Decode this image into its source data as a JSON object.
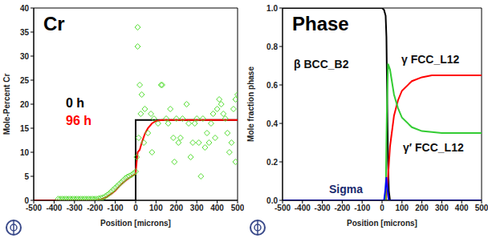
{
  "chart_data": [
    {
      "type": "line",
      "title": "Cr",
      "x_label": "Position [microns]",
      "y_label": "Mole-Percent Cr",
      "xlim": [
        -500,
        500
      ],
      "xticks": [
        -500,
        -400,
        -300,
        -200,
        -100,
        0,
        100,
        200,
        300,
        400,
        500
      ],
      "ylim": [
        0,
        40
      ],
      "yticks": [
        0,
        5,
        10,
        15,
        20,
        25,
        30,
        35,
        40
      ],
      "series": [
        {
          "name": "0 h",
          "color": "#000000",
          "type": "line",
          "x": [
            -500,
            0,
            0,
            500
          ],
          "values": [
            0,
            0,
            16.7,
            16.7
          ]
        },
        {
          "name": "96 h",
          "color": "#ff0000",
          "type": "line",
          "x": [
            -500,
            -200,
            -170,
            -150,
            -120,
            -100,
            -80,
            -60,
            -40,
            -20,
            0,
            5,
            10,
            20,
            30,
            45,
            60,
            80,
            100,
            130,
            160,
            500
          ],
          "values": [
            0,
            0,
            0.2,
            0.5,
            1.3,
            2.0,
            2.9,
            3.7,
            4.4,
            5.0,
            5.5,
            8,
            10,
            10.5,
            12,
            13.8,
            15,
            16,
            16.5,
            16.7,
            16.7,
            16.7
          ]
        },
        {
          "type": "scatter",
          "marker": "diamond",
          "color": "#55dd33",
          "x": [
            -380,
            -370,
            -360,
            -350,
            -340,
            -330,
            -320,
            -310,
            -300,
            -290,
            -280,
            -270,
            -260,
            -250,
            -240,
            -230,
            -220,
            -210,
            -200,
            -190,
            -180,
            -170,
            -160,
            -150,
            -140,
            -130,
            -120,
            -110,
            -100,
            -90,
            -80,
            -70,
            -60,
            -50,
            -40,
            -30,
            -20,
            -10,
            0,
            5,
            10,
            10,
            15,
            20,
            25,
            30,
            40,
            45,
            60,
            75,
            80,
            90,
            110,
            125,
            130,
            150,
            160,
            170,
            185,
            190,
            200,
            210,
            220,
            230,
            250,
            260,
            270,
            280,
            290,
            300,
            310,
            320,
            330,
            340,
            350,
            360,
            370,
            380,
            390,
            400,
            410,
            420,
            430,
            440,
            450,
            460,
            470,
            480,
            490,
            490,
            500
          ],
          "values": [
            0.3,
            0.3,
            0.3,
            0.3,
            0.3,
            0.3,
            0.3,
            0.3,
            0.3,
            0.3,
            0.3,
            0.3,
            0.3,
            0.3,
            0.3,
            0.3,
            0.3,
            0.3,
            0.3,
            0.3,
            0.4,
            0.5,
            0.6,
            0.8,
            1.1,
            1.4,
            1.8,
            2.2,
            2.6,
            3.0,
            3.4,
            3.8,
            4.2,
            4.6,
            4.9,
            5.1,
            5.3,
            5.6,
            6,
            9,
            36,
            32,
            13,
            24,
            18,
            22,
            12,
            19,
            14,
            18,
            10,
            17,
            16,
            24,
            24,
            17,
            16,
            19,
            13,
            8,
            17,
            12,
            13,
            17,
            20,
            16,
            9,
            12,
            16,
            17,
            12,
            5,
            17,
            11,
            14,
            12,
            16,
            18,
            13,
            19,
            21,
            20,
            18,
            17,
            14,
            10,
            12,
            19,
            21,
            8,
            22
          ]
        }
      ]
    },
    {
      "type": "line",
      "title": "Phase",
      "x_label": "Position [microns]",
      "y_label": "Mole fraction phase",
      "xlim": [
        -500,
        500
      ],
      "xticks": [
        -500,
        -400,
        -300,
        -200,
        -100,
        0,
        100,
        200,
        300,
        400,
        500
      ],
      "ylim": [
        0,
        1
      ],
      "yticks": [
        {
          "value": 0,
          "label": "0.0"
        },
        0.2,
        0.4,
        0.6,
        0.8,
        {
          "value": 1,
          "label": "1.0"
        }
      ],
      "series": [
        {
          "name": "β BCC_B2",
          "color": "#000000",
          "x": [
            -500,
            0,
            10,
            18,
            22,
            26,
            30,
            34,
            40,
            500
          ],
          "values": [
            1,
            1,
            0.99,
            0.96,
            0.85,
            0.5,
            0.2,
            0.05,
            0,
            0
          ]
        },
        {
          "name": "γ FCC_L12",
          "color": "#ff0000",
          "x": [
            -500,
            20,
            30,
            40,
            60,
            80,
            100,
            150,
            200,
            250,
            300,
            500
          ],
          "values": [
            0,
            0,
            0.12,
            0.28,
            0.44,
            0.52,
            0.57,
            0.62,
            0.64,
            0.65,
            0.65,
            0.65
          ]
        },
        {
          "name": "γ′ FCC_L12",
          "color": "#33cc33",
          "x": [
            -500,
            18,
            24,
            30,
            40,
            60,
            80,
            100,
            150,
            200,
            300,
            500
          ],
          "values": [
            0,
            0,
            0.45,
            0.71,
            0.68,
            0.55,
            0.48,
            0.43,
            0.38,
            0.36,
            0.35,
            0.35
          ]
        },
        {
          "name": "Sigma",
          "color": "#0000ff",
          "x": [
            -500,
            10,
            16,
            22,
            28,
            34,
            500
          ],
          "values": [
            0,
            0,
            0.05,
            0.12,
            0.05,
            0,
            0
          ]
        }
      ]
    }
  ]
}
